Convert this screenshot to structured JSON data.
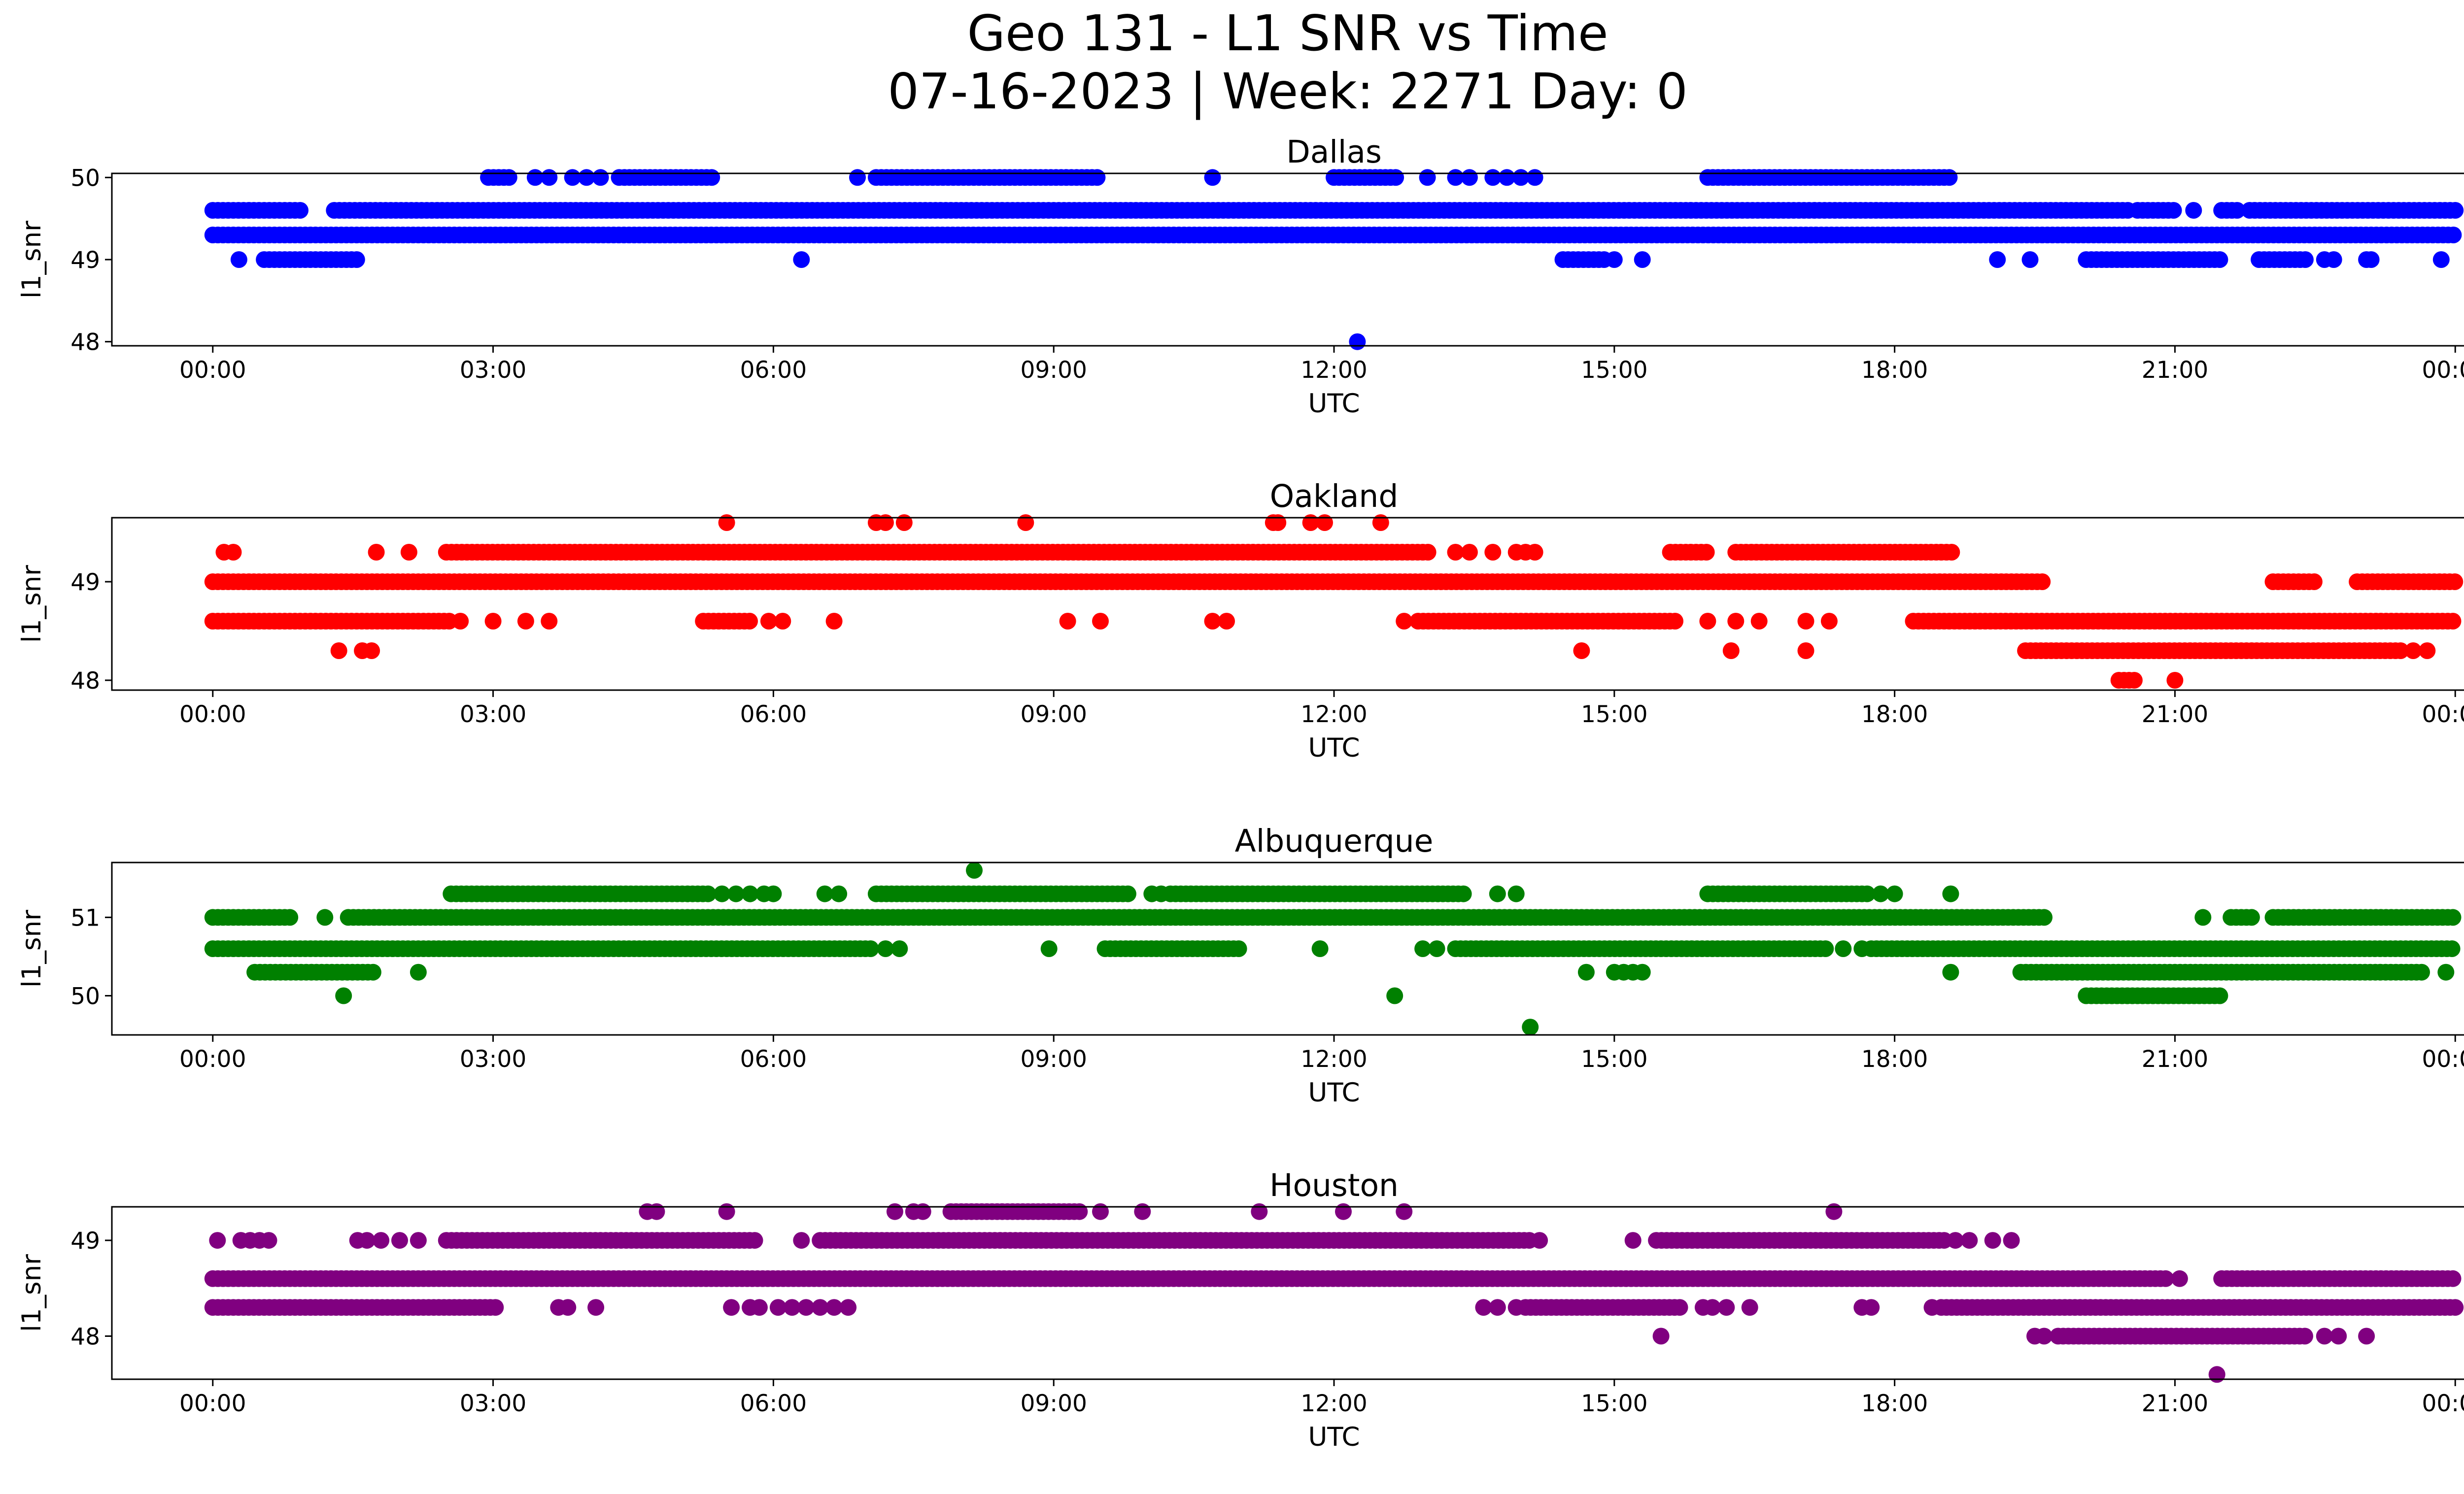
{
  "figure": {
    "title_line1": "Geo 131 - L1 SNR vs Time",
    "title_line2": "07-16-2023 | Week: 2271 Day: 0"
  },
  "chart_data": [
    {
      "type": "scatter",
      "title": "Dallas",
      "xlabel": "UTC",
      "ylabel": "l1_snr",
      "color": "#0000ff",
      "xlim": [
        "2023-07-16 00:00",
        "2023-07-17 00:00"
      ],
      "xticks": [
        "00:00",
        "03:00",
        "06:00",
        "09:00",
        "12:00",
        "15:00",
        "18:00",
        "21:00",
        "00:00"
      ],
      "ylim": [
        47.95,
        50.05
      ],
      "yticks": [
        48,
        49,
        50
      ],
      "grid": false,
      "series": [
        {
          "segments": [
            {
              "y": 49.6,
              "spans": [
                [
                  0.0,
                  0.95
                ],
                [
                  1.3,
                  20.5
                ],
                [
                  20.6,
                  21.0
                ],
                [
                  21.5,
                  21.7
                ],
                [
                  21.8,
                  24.0
                ]
              ],
              "points": [
                21.2
              ]
            },
            {
              "y": 49.3,
              "spans": [
                [
                  0.0,
                  24.0
                ]
              ]
            },
            {
              "y": 50.0,
              "spans": [
                [
                  2.95,
                  3.2
                ],
                [
                  4.35,
                  5.35
                ],
                [
                  7.1,
                  9.5
                ],
                [
                  12.0,
                  12.7
                ],
                [
                  16.0,
                  18.6
                ]
              ],
              "points": [
                3.45,
                3.6,
                3.85,
                4.0,
                4.15,
                6.9,
                10.7,
                13.0,
                13.3,
                13.45,
                13.7,
                13.85,
                14.0,
                14.15
              ]
            },
            {
              "y": 49.0,
              "spans": [
                [
                  0.55,
                  1.55
                ],
                [
                  14.45,
                  14.9
                ],
                [
                  20.05,
                  21.5
                ],
                [
                  21.9,
                  22.4
                ]
              ],
              "points": [
                0.28,
                6.3,
                15.0,
                15.3,
                19.1,
                19.45,
                22.6,
                22.7,
                23.05,
                23.1,
                23.85
              ]
            },
            {
              "y": 48.0,
              "spans": [],
              "points": [
                12.25
              ]
            }
          ]
        }
      ]
    },
    {
      "type": "scatter",
      "title": "Oakland",
      "xlabel": "UTC",
      "ylabel": "l1_snr",
      "color": "#ff0000",
      "xlim": [
        "2023-07-16 00:00",
        "2023-07-17 00:00"
      ],
      "xticks": [
        "00:00",
        "03:00",
        "06:00",
        "09:00",
        "12:00",
        "15:00",
        "18:00",
        "21:00",
        "00:00"
      ],
      "ylim": [
        47.9,
        49.65
      ],
      "yticks": [
        48,
        49
      ],
      "grid": false,
      "series": [
        {
          "segments": [
            {
              "y": 49.0,
              "spans": [
                [
                  0.0,
                  19.6
                ],
                [
                  22.05,
                  22.5
                ],
                [
                  22.95,
                  24.0
                ]
              ]
            },
            {
              "y": 48.6,
              "spans": [
                [
                  0.0,
                  2.55
                ],
                [
                  5.25,
                  5.75
                ],
                [
                  12.9,
                  15.7
                ],
                [
                  18.2,
                  24.0
                ]
              ],
              "points": [
                2.65,
                3.0,
                3.35,
                3.6,
                5.95,
                6.1,
                6.65,
                9.15,
                9.5,
                10.7,
                10.85,
                12.75,
                16.0,
                16.3,
                16.55,
                17.05,
                17.3
              ]
            },
            {
              "y": 49.3,
              "spans": [
                [
                  2.5,
                  13.05
                ],
                [
                  15.6,
                  16.0
                ],
                [
                  16.3,
                  18.65
                ]
              ],
              "points": [
                0.12,
                0.22,
                1.75,
                2.1,
                13.3,
                13.45,
                13.7,
                13.95,
                14.05,
                14.15
              ]
            },
            {
              "y": 49.6,
              "spans": [],
              "points": [
                5.5,
                7.1,
                7.2,
                7.4,
                8.7,
                11.35,
                11.4,
                11.75,
                11.9,
                12.5
              ]
            },
            {
              "y": 48.3,
              "spans": [
                [
                  19.4,
                  23.45
                ]
              ],
              "points": [
                1.35,
                1.6,
                1.7,
                14.65,
                16.25,
                17.05,
                23.55,
                23.7
              ]
            },
            {
              "y": 48.0,
              "spans": [
                [
                  20.4,
                  20.6
                ]
              ],
              "points": [
                21.0
              ]
            }
          ]
        }
      ]
    },
    {
      "type": "scatter",
      "title": "Albuquerque",
      "xlabel": "UTC",
      "ylabel": "l1_snr",
      "color": "#008000",
      "xlim": [
        "2023-07-16 00:00",
        "2023-07-17 00:00"
      ],
      "xticks": [
        "00:00",
        "03:00",
        "06:00",
        "09:00",
        "12:00",
        "15:00",
        "18:00",
        "21:00",
        "00:00"
      ],
      "ylim": [
        49.5,
        51.7
      ],
      "yticks": [
        50,
        51
      ],
      "grid": false,
      "series": [
        {
          "segments": [
            {
              "y": 51.0,
              "spans": [
                [
                  0.0,
                  0.85
                ],
                [
                  1.45,
                  19.6
                ],
                [
                  21.6,
                  21.85
                ],
                [
                  22.05,
                  24.0
                ]
              ],
              "points": [
                1.2,
                21.3
              ]
            },
            {
              "y": 50.6,
              "spans": [
                [
                  0.0,
                  7.05
                ],
                [
                  9.55,
                  11.0
                ],
                [
                  13.3,
                  17.3
                ],
                [
                  17.75,
                  24.0
                ]
              ],
              "points": [
                7.2,
                7.35,
                8.95,
                11.85,
                12.95,
                13.1,
                17.45,
                17.65
              ]
            },
            {
              "y": 51.3,
              "spans": [
                [
                  2.55,
                  5.3
                ],
                [
                  7.1,
                  9.8
                ],
                [
                  10.25,
                  13.4
                ],
                [
                  16.0,
                  17.75
                ]
              ],
              "points": [
                5.45,
                5.6,
                5.75,
                5.9,
                6.0,
                6.55,
                6.7,
                10.05,
                10.15,
                13.75,
                13.95,
                17.85,
                18.0,
                18.6
              ]
            },
            {
              "y": 50.3,
              "spans": [
                [
                  0.45,
                  1.75
                ],
                [
                  19.35,
                  23.65
                ]
              ],
              "points": [
                2.2,
                14.7,
                15.0,
                15.1,
                15.2,
                15.3,
                18.6,
                23.9
              ]
            },
            {
              "y": 50.0,
              "spans": [
                [
                  20.05,
                  21.5
                ]
              ],
              "points": [
                1.4,
                12.65
              ]
            },
            {
              "y": 51.6,
              "spans": [],
              "points": [
                8.15
              ]
            },
            {
              "y": 49.6,
              "spans": [],
              "points": [
                14.1
              ]
            }
          ]
        }
      ]
    },
    {
      "type": "scatter",
      "title": "Houston",
      "xlabel": "UTC",
      "ylabel": "l1_snr",
      "color": "#800080",
      "xlim": [
        "2023-07-16 00:00",
        "2023-07-17 00:00"
      ],
      "xticks": [
        "00:00",
        "03:00",
        "06:00",
        "09:00",
        "12:00",
        "15:00",
        "18:00",
        "21:00",
        "00:00"
      ],
      "ylim": [
        47.55,
        49.35
      ],
      "yticks": [
        48,
        49
      ],
      "grid": false,
      "series": [
        {
          "segments": [
            {
              "y": 48.6,
              "spans": [
                [
                  0.0,
                  20.9
                ],
                [
                  21.5,
                  24.0
                ]
              ],
              "points": [
                21.05
              ]
            },
            {
              "y": 48.3,
              "spans": [
                [
                  0.0,
                  3.05
                ],
                [
                  14.05,
                  15.75
                ],
                [
                  18.5,
                  24.0
                ]
              ],
              "points": [
                3.7,
                3.8,
                4.1,
                5.55,
                5.75,
                5.85,
                6.05,
                6.2,
                6.35,
                6.5,
                6.65,
                6.8,
                13.6,
                13.75,
                13.95,
                15.95,
                16.05,
                16.2,
                16.45,
                17.65,
                17.75,
                18.4
              ]
            },
            {
              "y": 49.0,
              "spans": [
                [
                  2.5,
                  5.85
                ],
                [
                  6.5,
                  14.1
                ],
                [
                  15.45,
                  18.55
                ]
              ],
              "points": [
                0.05,
                0.3,
                0.4,
                0.5,
                0.6,
                1.55,
                1.65,
                1.8,
                2.0,
                2.2,
                6.3,
                14.2,
                15.2,
                18.65,
                18.8,
                19.05,
                19.25
              ]
            },
            {
              "y": 49.3,
              "spans": [
                [
                  7.9,
                  9.3
                ]
              ],
              "points": [
                4.65,
                4.75,
                5.5,
                7.3,
                7.5,
                7.6,
                9.5,
                9.95,
                11.2,
                12.1,
                12.75,
                17.35
              ]
            },
            {
              "y": 48.0,
              "spans": [
                [
                  19.75,
                  22.4
                ]
              ],
              "points": [
                19.5,
                19.6,
                15.5,
                22.6,
                22.75,
                23.05
              ]
            },
            {
              "y": 47.6,
              "spans": [],
              "points": [
                21.45
              ]
            }
          ]
        }
      ]
    }
  ]
}
